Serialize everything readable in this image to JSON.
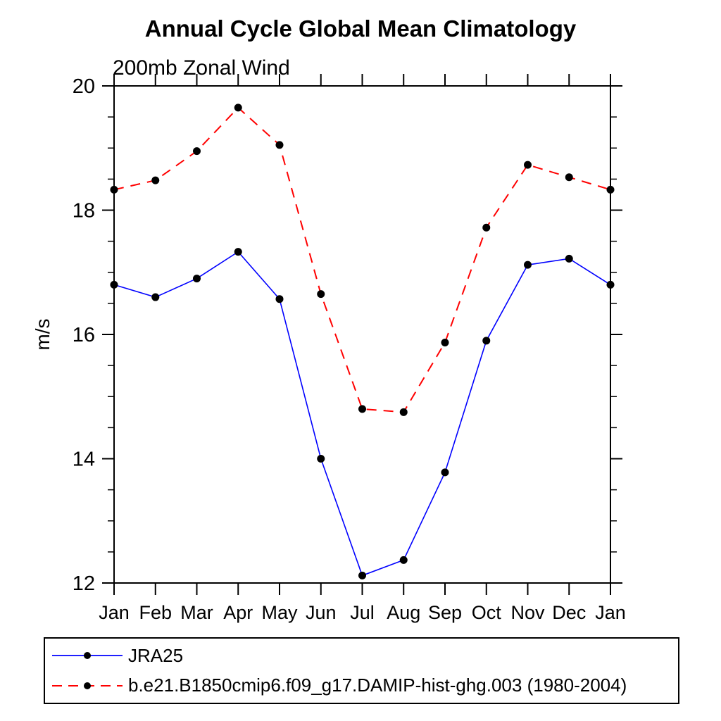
{
  "chart_data": {
    "type": "line",
    "title": "Annual Cycle Global Mean Climatology",
    "subtitle": "200mb Zonal Wind",
    "ylabel": "m/s",
    "xlabel": "",
    "ylim": [
      12,
      20
    ],
    "y_major_ticks": [
      12,
      14,
      16,
      18,
      20
    ],
    "y_minor_step": 0.5,
    "grid": false,
    "legend_position": "bottom-left",
    "axis_color": "#000000",
    "background_color": "#ffffff",
    "categories": [
      "Jan",
      "Feb",
      "Mar",
      "Apr",
      "May",
      "Jun",
      "Jul",
      "Aug",
      "Sep",
      "Oct",
      "Nov",
      "Dec",
      "Jan"
    ],
    "series": [
      {
        "name": "JRA25",
        "color": "#0000ff",
        "line_style": "solid",
        "line_width": 1.6,
        "marker": "filled-circle",
        "marker_color": "#000000",
        "values": [
          16.8,
          16.6,
          16.9,
          17.33,
          16.57,
          14.0,
          12.12,
          12.37,
          13.78,
          15.9,
          17.12,
          17.22,
          16.8
        ]
      },
      {
        "name": "b.e21.B1850cmip6.f09_g17.DAMIP-hist-ghg.003 (1980-2004)",
        "color": "#ff0000",
        "line_style": "dashed",
        "line_width": 2,
        "marker": "filled-circle",
        "marker_color": "#000000",
        "values": [
          18.33,
          18.48,
          18.95,
          19.65,
          19.05,
          16.65,
          14.8,
          14.75,
          15.87,
          17.72,
          18.73,
          18.53,
          18.33
        ]
      }
    ]
  }
}
